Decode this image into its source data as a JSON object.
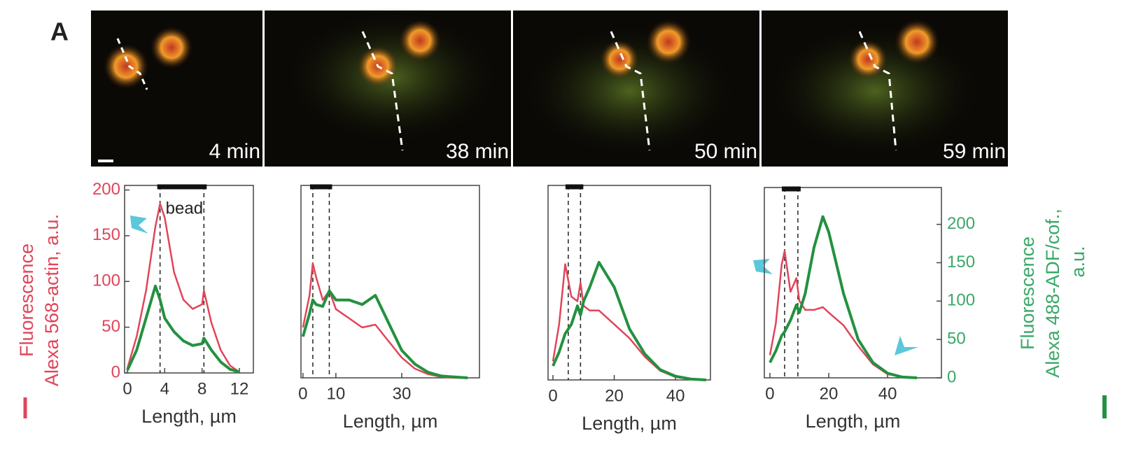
{
  "panel_label": "A",
  "images": [
    {
      "label": "4 min"
    },
    {
      "label": "38 min"
    },
    {
      "label": "50 min"
    },
    {
      "label": "59 min"
    }
  ],
  "chart_data": [
    {
      "type": "line",
      "xlabel": "Length, µm",
      "ylabel": [
        "Fluorescence",
        "Alexa 568-actin, a.u."
      ],
      "xlim": [
        -0.3,
        13.5
      ],
      "xticks": [
        0,
        4,
        8,
        12
      ],
      "ylim": [
        0,
        205
      ],
      "yticks": [
        0,
        50,
        100,
        150,
        200
      ],
      "bead_lines": [
        3.5,
        8.2
      ],
      "annotation": "bead",
      "x": [
        0,
        1,
        2,
        3,
        3.5,
        4,
        5,
        6,
        7,
        8,
        8.2,
        9,
        10,
        11,
        12
      ],
      "series": [
        {
          "name": "Alexa 568-actin",
          "color": "#e0455a",
          "values": [
            5,
            40,
            90,
            160,
            185,
            170,
            110,
            80,
            70,
            75,
            90,
            55,
            25,
            8,
            1
          ]
        },
        {
          "name": "Alexa 488-ADF/cof.",
          "color": "#23913f",
          "values": [
            3,
            25,
            60,
            95,
            80,
            60,
            45,
            35,
            30,
            32,
            38,
            25,
            12,
            4,
            1
          ]
        }
      ]
    },
    {
      "type": "line",
      "xlabel": "Length, µm",
      "xlim": [
        -0.6,
        53.6
      ],
      "xticks": [
        0,
        10,
        30
      ],
      "ylim": [
        0,
        210
      ],
      "bead_lines": [
        3,
        8
      ],
      "x": [
        0,
        2,
        3,
        4,
        6,
        8,
        10,
        14,
        18,
        22,
        26,
        30,
        34,
        38,
        42,
        46,
        50
      ],
      "series": [
        {
          "name": "Alexa 568-actin",
          "color": "#e0455a",
          "values": [
            55,
            90,
            125,
            110,
            85,
            95,
            75,
            65,
            55,
            58,
            40,
            22,
            10,
            4,
            1,
            0,
            0
          ]
        },
        {
          "name": "Alexa 488-ADF/cof.",
          "color": "#23913f",
          "values": [
            45,
            70,
            85,
            80,
            78,
            95,
            85,
            85,
            80,
            90,
            60,
            30,
            15,
            6,
            2,
            1,
            0
          ]
        }
      ]
    },
    {
      "type": "line",
      "xlabel": "Length, µm",
      "xlim": [
        -1.6,
        51.4
      ],
      "xticks": [
        0,
        20,
        40
      ],
      "ylim": [
        0,
        210
      ],
      "bead_lines": [
        5,
        9
      ],
      "x": [
        0,
        2,
        4,
        6,
        8,
        9,
        10,
        12,
        15,
        20,
        25,
        30,
        35,
        40,
        45,
        50
      ],
      "series": [
        {
          "name": "Alexa 568-actin",
          "color": "#e0455a",
          "values": [
            20,
            60,
            125,
            90,
            85,
            105,
            80,
            75,
            75,
            60,
            45,
            25,
            10,
            3,
            1,
            0
          ]
        },
        {
          "name": "Alexa 488-ADF/cof.",
          "color": "#23913f",
          "values": [
            15,
            30,
            50,
            60,
            80,
            70,
            85,
            100,
            127,
            100,
            55,
            28,
            11,
            4,
            1,
            0
          ]
        }
      ]
    },
    {
      "type": "line",
      "xlabel": "Length, µm",
      "y2label": [
        "Fluorescence",
        "Alexa 488-ADF/cof.,",
        "a.u."
      ],
      "xlim": [
        -1.9,
        58.3
      ],
      "xticks": [
        0,
        20,
        40
      ],
      "ylim": [
        0,
        210
      ],
      "y2lim": [
        0,
        248
      ],
      "y2ticks": [
        0,
        50,
        100,
        150,
        200
      ],
      "bead_lines": [
        5,
        9.5
      ],
      "x": [
        0,
        2,
        4,
        5,
        7,
        9,
        10,
        12,
        15,
        18,
        20,
        25,
        30,
        35,
        40,
        45,
        50
      ],
      "series": [
        {
          "name": "Alexa 568-actin",
          "color": "#e0455a",
          "values": [
            25,
            60,
            125,
            140,
            95,
            110,
            85,
            75,
            75,
            78,
            72,
            58,
            35,
            15,
            4,
            1,
            0
          ]
        },
        {
          "name": "Alexa 488-ADF/cof.",
          "color": "#23913f",
          "axis": "y2",
          "values": [
            20,
            35,
            55,
            60,
            75,
            95,
            85,
            110,
            170,
            210,
            190,
            110,
            50,
            20,
            6,
            1,
            0
          ]
        }
      ]
    }
  ]
}
